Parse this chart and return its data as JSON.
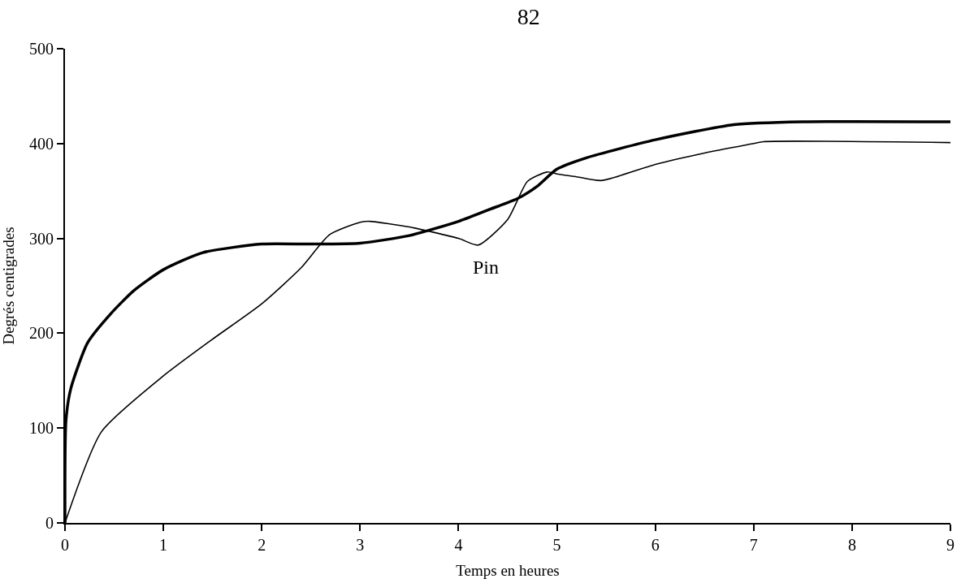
{
  "chart_data": {
    "type": "line",
    "title": "82",
    "xlabel": "Temps en heures",
    "ylabel": "Degrés centigrades",
    "annotations": [
      "Pin"
    ],
    "xlim": [
      0,
      9
    ],
    "xticks": [
      0,
      1,
      2,
      3,
      4,
      5,
      6,
      7,
      8,
      9
    ],
    "ylim": [
      0,
      500
    ],
    "yticks": [
      0,
      100,
      200,
      300,
      400,
      500
    ],
    "marker": "none",
    "line_style": "solid",
    "series": [
      {
        "color": "#000000",
        "x": [
          0,
          0.01,
          0.06,
          0.23,
          0.46,
          0.7,
          1.0,
          1.4,
          2.0,
          2.5,
          3.0,
          3.5,
          4.0,
          4.3,
          4.6,
          4.8,
          5.0,
          5.3,
          6.0,
          6.8,
          7.5,
          9.0
        ],
        "values": [
          0,
          108,
          142,
          190,
          220,
          245,
          267,
          285,
          294,
          294,
          295,
          303,
          318,
          330,
          342,
          355,
          373,
          385,
          404,
          420,
          423,
          423
        ]
      },
      {
        "color": "#000000",
        "x": [
          0,
          0.37,
          1.0,
          1.49,
          2.0,
          2.4,
          2.69,
          3.0,
          3.1,
          3.5,
          4.0,
          4.2,
          4.5,
          4.7,
          4.9,
          5.0,
          5.2,
          5.45,
          6.0,
          6.5,
          7.0,
          7.1,
          9.0
        ],
        "values": [
          0,
          96,
          155,
          193,
          231,
          269,
          304,
          317,
          318,
          312,
          300,
          293,
          320,
          360,
          370,
          368,
          365,
          361,
          378,
          390,
          400,
          402,
          401
        ]
      }
    ]
  }
}
